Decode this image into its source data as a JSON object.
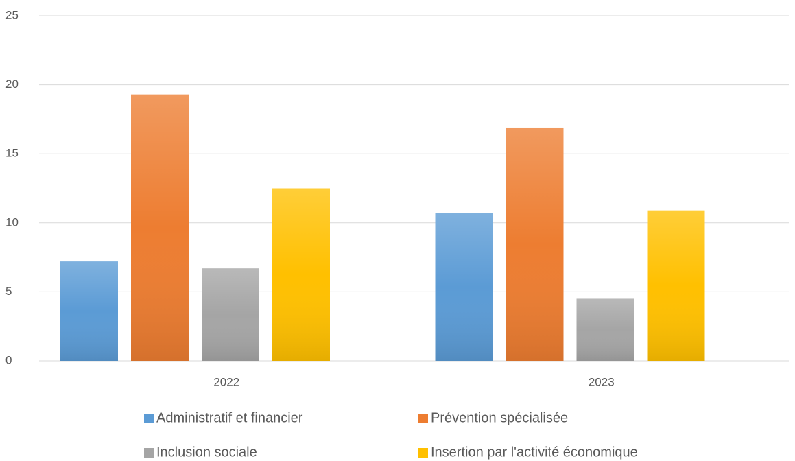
{
  "chart_data": {
    "type": "bar",
    "categories": [
      "2022",
      "2023"
    ],
    "series": [
      {
        "name": "Administratif et financier",
        "color": "#5b9bd5",
        "values": [
          7.2,
          10.7
        ]
      },
      {
        "name": "Prévention spécialisée",
        "color": "#ed7d31",
        "values": [
          19.3,
          16.9
        ]
      },
      {
        "name": "Inclusion sociale",
        "color": "#a5a5a5",
        "values": [
          6.7,
          4.5
        ]
      },
      {
        "name": "Insertion par l'activité économique",
        "color": "#ffc000",
        "values": [
          12.5,
          10.9
        ]
      }
    ],
    "ylim": [
      0,
      25
    ],
    "yticks": [
      0,
      5,
      10,
      15,
      20,
      25
    ],
    "grid": true,
    "legend": "bottom"
  }
}
